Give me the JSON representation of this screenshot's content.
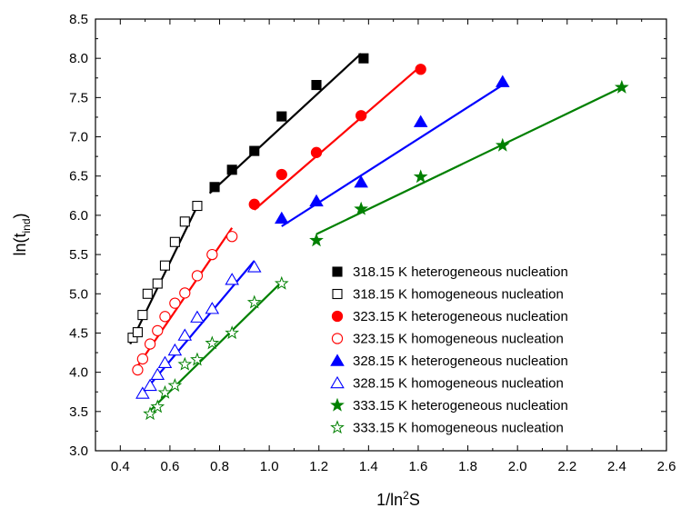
{
  "chart_data": {
    "type": "scatter",
    "title": "",
    "xlabel": "1/ln²S",
    "ylabel": "ln(t_ind)",
    "xlim": [
      0.3,
      2.6
    ],
    "ylim": [
      3.0,
      8.5
    ],
    "xticks": [
      0.4,
      0.6,
      0.8,
      1.0,
      1.2,
      1.4,
      1.6,
      1.8,
      2.0,
      2.2,
      2.4,
      2.6
    ],
    "xtick_labels": [
      "0.4",
      "0.6",
      "0.8",
      "1.0",
      "1.2",
      "1.4",
      "1.6",
      "1.8",
      "2.0",
      "2.2",
      "2.4",
      "2.6"
    ],
    "yticks": [
      3.0,
      3.5,
      4.0,
      4.5,
      5.0,
      5.5,
      6.0,
      6.5,
      7.0,
      7.5,
      8.0,
      8.5
    ],
    "ytick_labels": [
      "3.0",
      "3.5",
      "4.0",
      "4.5",
      "5.0",
      "5.5",
      "6.0",
      "6.5",
      "7.0",
      "7.5",
      "8.0",
      "8.5"
    ],
    "grid": false,
    "legend_position": "bottom-right",
    "series": [
      {
        "name": "318.15 K heterogeneous nucleation",
        "color": "#000000",
        "marker": "square",
        "filled": true,
        "x": [
          0.78,
          0.85,
          0.94,
          1.05,
          1.19,
          1.38
        ],
        "y": [
          6.36,
          6.58,
          6.82,
          7.26,
          7.66,
          8.0
        ],
        "fit": {
          "x": [
            0.76,
            1.37
          ],
          "y": [
            6.28,
            8.06
          ]
        }
      },
      {
        "name": "318.15 K homogeneous nucleation",
        "color": "#000000",
        "marker": "square",
        "filled": false,
        "x": [
          0.45,
          0.47,
          0.49,
          0.51,
          0.55,
          0.58,
          0.62,
          0.66,
          0.71
        ],
        "y": [
          4.44,
          4.51,
          4.73,
          5.0,
          5.13,
          5.36,
          5.66,
          5.92,
          6.12
        ],
        "fit": {
          "x": [
            0.44,
            0.72
          ],
          "y": [
            4.36,
            6.18
          ]
        }
      },
      {
        "name": "323.15 K heterogeneous nucleation",
        "color": "#ff0000",
        "marker": "circle",
        "filled": true,
        "x": [
          0.94,
          1.05,
          1.19,
          1.37,
          1.61
        ],
        "y": [
          6.14,
          6.52,
          6.8,
          7.27,
          7.86
        ],
        "fit": {
          "x": [
            0.94,
            1.61
          ],
          "y": [
            6.07,
            7.9
          ]
        }
      },
      {
        "name": "323.15 K homogeneous nucleation",
        "color": "#ff0000",
        "marker": "circle",
        "filled": false,
        "x": [
          0.47,
          0.49,
          0.52,
          0.55,
          0.58,
          0.62,
          0.66,
          0.71,
          0.77,
          0.85
        ],
        "y": [
          4.03,
          4.17,
          4.36,
          4.53,
          4.71,
          4.88,
          5.01,
          5.23,
          5.5,
          5.73
        ],
        "fit": {
          "x": [
            0.47,
            0.85
          ],
          "y": [
            4.08,
            5.84
          ]
        }
      },
      {
        "name": "328.15 K heterogeneous nucleation",
        "color": "#0000ff",
        "marker": "triangle",
        "filled": true,
        "x": [
          1.05,
          1.19,
          1.37,
          1.61,
          1.94
        ],
        "y": [
          5.96,
          6.18,
          6.42,
          7.19,
          7.7
        ],
        "fit": {
          "x": [
            1.05,
            1.94
          ],
          "y": [
            5.86,
            7.66
          ]
        }
      },
      {
        "name": "328.15 K homogeneous nucleation",
        "color": "#0000ff",
        "marker": "triangle",
        "filled": false,
        "x": [
          0.49,
          0.52,
          0.55,
          0.58,
          0.62,
          0.66,
          0.71,
          0.77,
          0.85,
          0.94
        ],
        "y": [
          3.73,
          3.83,
          3.97,
          4.12,
          4.28,
          4.47,
          4.7,
          4.81,
          5.18,
          5.34
        ],
        "fit": {
          "x": [
            0.49,
            0.94
          ],
          "y": [
            3.73,
            5.42
          ]
        }
      },
      {
        "name": "333.15 K heterogeneous nucleation",
        "color": "#008000",
        "marker": "star",
        "filled": true,
        "x": [
          1.19,
          1.37,
          1.61,
          1.94,
          2.42
        ],
        "y": [
          5.68,
          6.08,
          6.49,
          6.89,
          7.63
        ],
        "fit": {
          "x": [
            1.19,
            2.42
          ],
          "y": [
            5.76,
            7.63
          ]
        }
      },
      {
        "name": "333.15 K homogeneous nucleation",
        "color": "#008000",
        "marker": "star",
        "filled": false,
        "x": [
          0.52,
          0.55,
          0.58,
          0.62,
          0.66,
          0.71,
          0.77,
          0.85,
          0.94,
          1.05
        ],
        "y": [
          3.47,
          3.56,
          3.74,
          3.83,
          4.1,
          4.16,
          4.37,
          4.5,
          4.89,
          5.13
        ],
        "fit": {
          "x": [
            0.52,
            1.05
          ],
          "y": [
            3.51,
            5.15
          ]
        }
      }
    ]
  }
}
